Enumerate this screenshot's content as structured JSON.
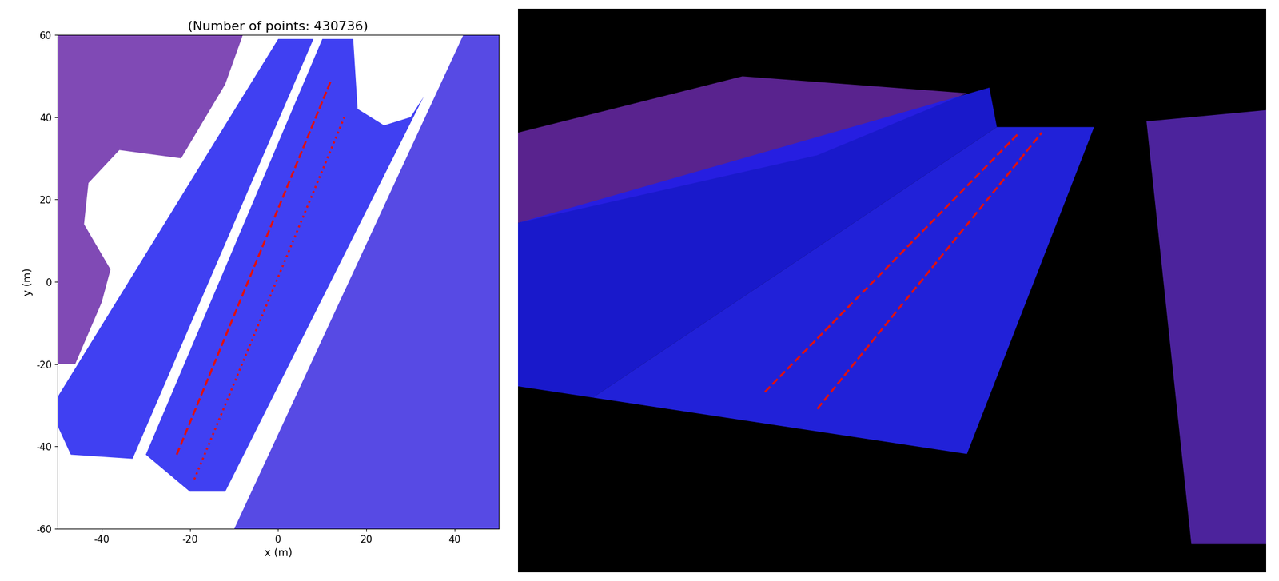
{
  "chart_data": [
    {
      "type": "scatter",
      "title": "(Number of points: 430736)",
      "x_label": "x (m)",
      "y_label": "y (m)",
      "xlim": [
        -50,
        50
      ],
      "ylim": [
        -60,
        60
      ],
      "xticks": [
        -40,
        -20,
        0,
        20,
        40
      ],
      "yticks": [
        -60,
        -40,
        -20,
        0,
        20,
        40,
        60
      ],
      "series": [
        {
          "type": "polygon",
          "color": "#6a2aa8",
          "x": [
            -50,
            -46,
            -40,
            -38,
            -44,
            -43,
            -36,
            -22,
            -12,
            -8,
            -50
          ],
          "y": [
            -20,
            -20,
            -5,
            3,
            14,
            24,
            32,
            30,
            48,
            60,
            60
          ]
        },
        {
          "type": "polygon",
          "color": "#1e1ef0",
          "x": [
            -50,
            -47,
            -33,
            8,
            0,
            -50
          ],
          "y": [
            -35,
            -42,
            -43,
            59,
            59,
            -28
          ]
        },
        {
          "type": "polygon",
          "color": "#1e1ef0",
          "x": [
            -30,
            -20,
            -12,
            33,
            30,
            24,
            18,
            17,
            10
          ],
          "y": [
            -42,
            -51,
            -51,
            45,
            40,
            38,
            42,
            59,
            59
          ]
        },
        {
          "type": "polygon",
          "color": "#3a2ae0",
          "x": [
            -10,
            50,
            50,
            42
          ],
          "y": [
            -60,
            -60,
            60,
            60
          ]
        },
        {
          "type": "line",
          "color": "#e01010",
          "line_style": "dashed",
          "x": [
            -23,
            12
          ],
          "y": [
            -42,
            49
          ]
        },
        {
          "type": "line",
          "color": "#e01010",
          "line_style": "dotted",
          "x": [
            -19,
            15
          ],
          "y": [
            -48,
            40
          ]
        }
      ]
    },
    {
      "type": "scatter",
      "tick_labels": false,
      "xlim": [
        0,
        1
      ],
      "ylim": [
        0,
        1
      ],
      "series": [
        {
          "type": "polygon",
          "color": "#6a2aa8",
          "x": [
            0,
            0.3,
            0.6,
            0.4,
            0
          ],
          "y": [
            0.78,
            0.88,
            0.85,
            0.74,
            0.62
          ]
        },
        {
          "type": "polygon",
          "color": "#1e1ef0",
          "x": [
            0,
            0.63,
            0.64,
            0.1,
            0
          ],
          "y": [
            0.62,
            0.86,
            0.79,
            0.31,
            0.33
          ]
        },
        {
          "type": "polygon",
          "color": "#2828ff",
          "x": [
            0.1,
            0.6,
            0.77,
            0.64
          ],
          "y": [
            0.31,
            0.21,
            0.79,
            0.79
          ]
        },
        {
          "type": "polygon",
          "color": "#5a2ab8",
          "x": [
            0.84,
            1,
            1,
            0.9
          ],
          "y": [
            0.8,
            0.82,
            0.05,
            0.05
          ]
        },
        {
          "type": "line",
          "color": "#e01010",
          "line_style": "dashed",
          "x": [
            0.33,
            0.67
          ],
          "y": [
            0.32,
            0.78
          ]
        },
        {
          "type": "line",
          "color": "#e01010",
          "line_style": "dashed",
          "x": [
            0.4,
            0.7
          ],
          "y": [
            0.29,
            0.78
          ]
        }
      ]
    }
  ]
}
